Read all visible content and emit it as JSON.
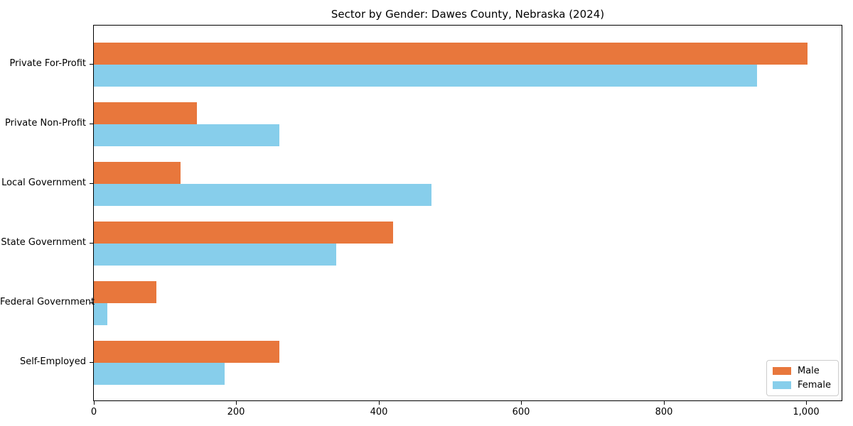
{
  "chart_data": {
    "type": "bar",
    "orientation": "horizontal",
    "title": "Sector by Gender: Dawes County, Nebraska (2024)",
    "categories": [
      "Private For-Profit",
      "Private Non-Profit",
      "Local Government",
      "State Government",
      "Federal Government",
      "Self-Employed"
    ],
    "series": [
      {
        "name": "Male",
        "color": "#E8773C",
        "values": [
          1002,
          145,
          122,
          420,
          88,
          261
        ]
      },
      {
        "name": "Female",
        "color": "#87CEEB",
        "values": [
          931,
          261,
          474,
          340,
          19,
          184
        ]
      }
    ],
    "xlabel": "",
    "ylabel": "",
    "xlim": [
      0,
      1050
    ],
    "x_ticks": [
      0,
      200,
      400,
      600,
      800,
      1000
    ],
    "x_tick_labels": [
      "0",
      "200",
      "400",
      "600",
      "800",
      "1,000"
    ],
    "grid": false,
    "legend": {
      "position": "lower right",
      "entries": [
        "Male",
        "Female"
      ]
    }
  },
  "colors": {
    "axis": "#000000",
    "legend_border": "#cccccc",
    "background": "#ffffff"
  }
}
